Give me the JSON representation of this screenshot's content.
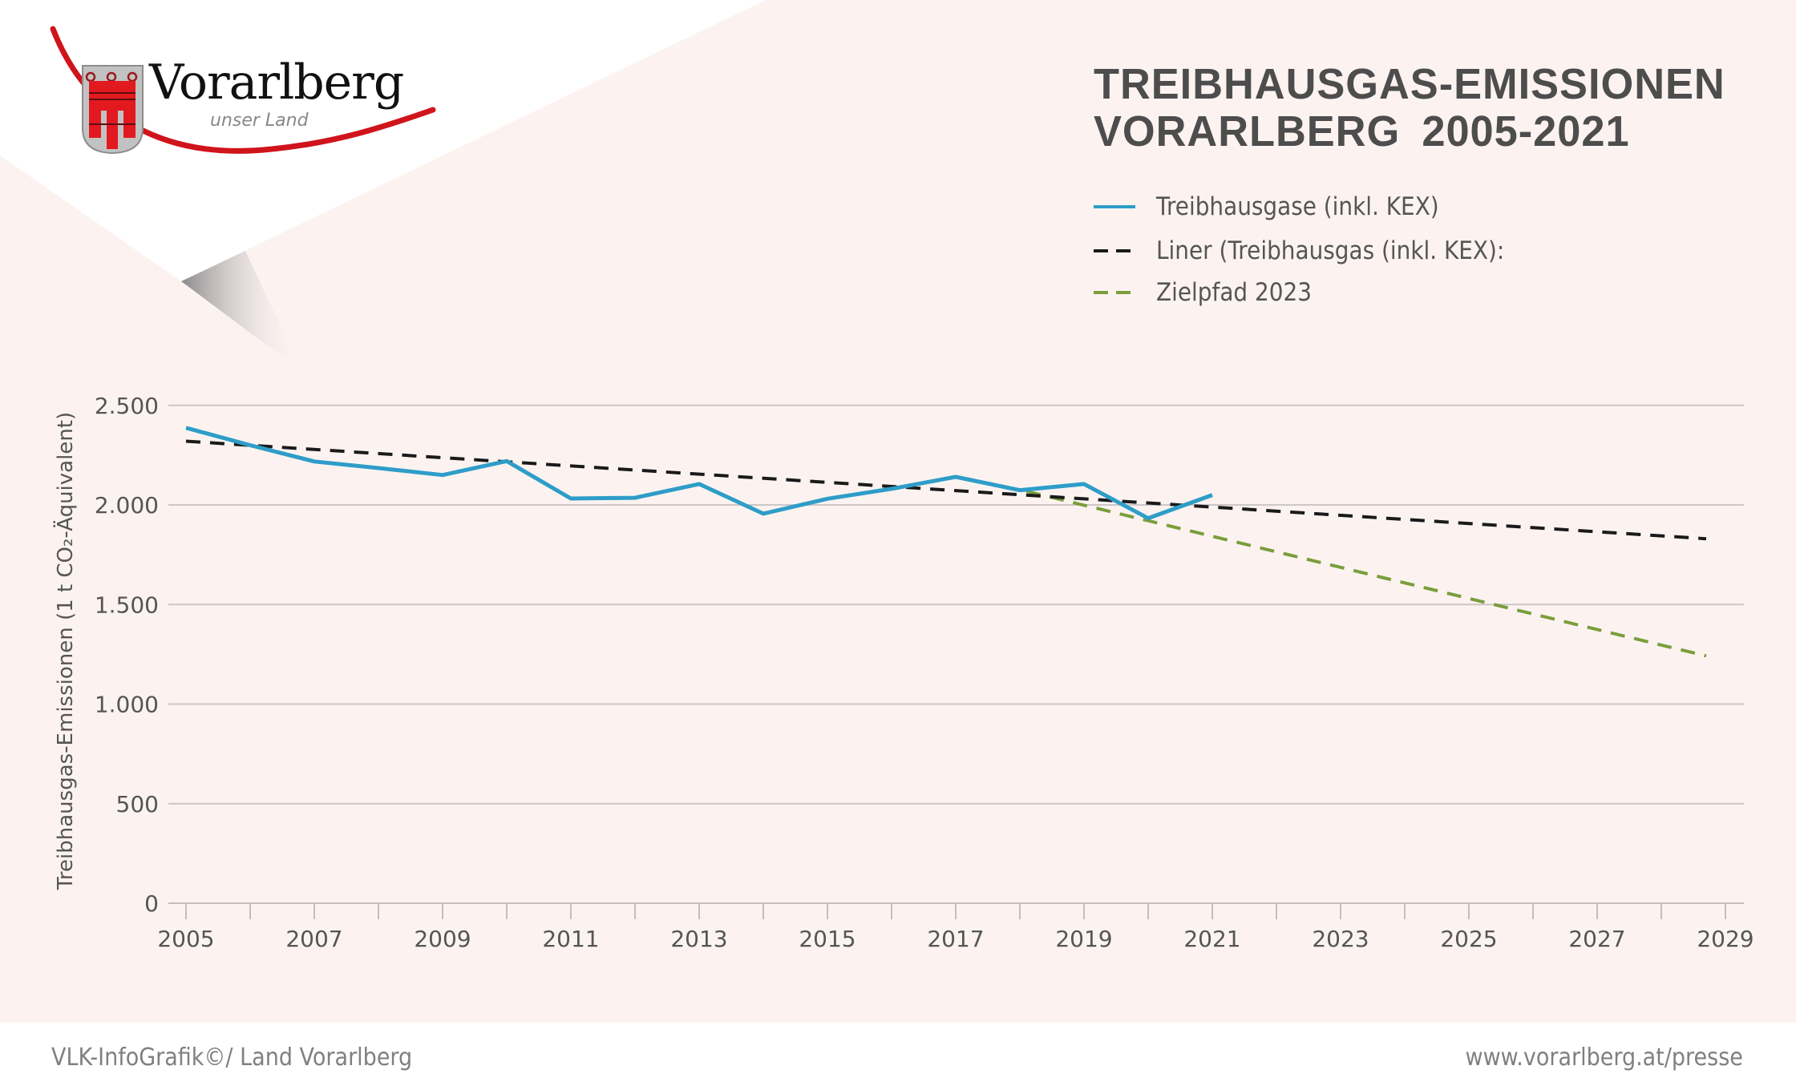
{
  "branding": {
    "logo_name": "Vorarlberg",
    "logo_tagline": "unser Land",
    "colors": {
      "logo_red": "#d0141c",
      "shield_gray": "#bdbdbd"
    }
  },
  "header": {
    "title_line1": "TREIBHAUSGAS-EMISSIONEN",
    "title_line2": "VORARLBERG  2005-2021"
  },
  "footer": {
    "credit": "VLK-InfoGrafik©/ Land Vorarlberg",
    "url": "www.vorarlberg.at/presse"
  },
  "chart_data": {
    "type": "line",
    "title": "TREIBHAUSGAS-EMISSIONEN VORARLBERG 2005-2021",
    "xlabel": "",
    "ylabel": "Treibhausgas-Emissionen (1 t CO₂-Äquivalent)",
    "xlim": [
      2005,
      2029
    ],
    "ylim": [
      0,
      2500
    ],
    "x_ticks": [
      2005,
      2006,
      2007,
      2008,
      2009,
      2010,
      2011,
      2012,
      2013,
      2014,
      2015,
      2016,
      2017,
      2018,
      2019,
      2020,
      2021,
      2022,
      2023,
      2024,
      2025,
      2026,
      2027,
      2028,
      2029
    ],
    "x_tick_labels": [
      "2005",
      "2007",
      "2009",
      "2011",
      "2013",
      "2015",
      "2017",
      "2019",
      "2021",
      "2023",
      "2025",
      "2027",
      "2029"
    ],
    "y_ticks": [
      0,
      500,
      1000,
      1500,
      2000,
      2500
    ],
    "y_tick_labels": [
      "0",
      "500",
      "1.000",
      "1.500",
      "2.000",
      "2.500"
    ],
    "grid": true,
    "legend_position": "top-right",
    "series": [
      {
        "name": "Treibhausgase (inkl. KEX)",
        "style": "solid",
        "color": "#2e9dc8",
        "x": [
          2005,
          2006,
          2007,
          2008,
          2009,
          2010,
          2011,
          2012,
          2013,
          2014,
          2015,
          2016,
          2017,
          2018,
          2019,
          2020,
          2021
        ],
        "values": [
          2387,
          2300,
          2218,
          2185,
          2150,
          2220,
          2032,
          2036,
          2105,
          1956,
          2031,
          2081,
          2141,
          2074,
          2105,
          1933,
          2050
        ]
      },
      {
        "name": "Liner (Treibhausgas (inkl. KEX):",
        "style": "dashed",
        "color": "#1a1a1a",
        "x": [
          2005,
          2028.7
        ],
        "values": [
          2320,
          1830
        ]
      },
      {
        "name": "Zielpfad 2023",
        "style": "dashed",
        "color": "#7a9e3b",
        "x": [
          2018.1,
          2028.7
        ],
        "values": [
          2069,
          1242
        ]
      }
    ]
  }
}
